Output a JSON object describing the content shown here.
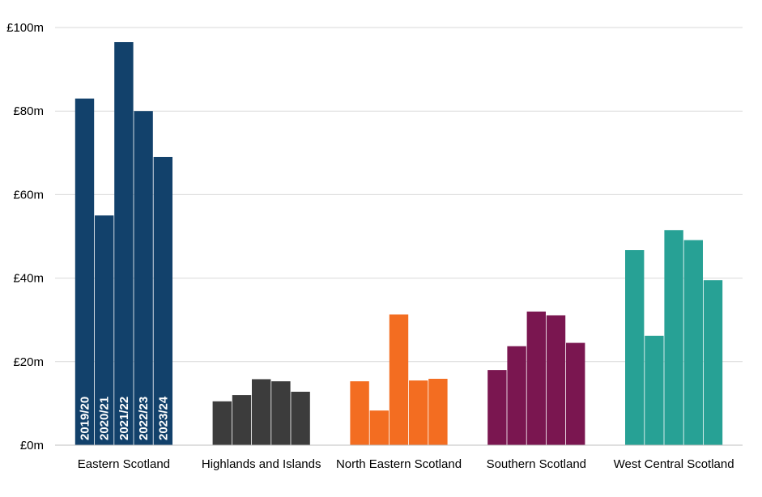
{
  "chart_data": {
    "type": "bar",
    "title": "",
    "xlabel": "",
    "ylabel": "",
    "ylim": [
      0,
      100
    ],
    "y_ticks": [
      "£0m",
      "£20m",
      "£40m",
      "£60m",
      "£80m",
      "£100m"
    ],
    "grid": true,
    "categories": [
      "Eastern Scotland",
      "Highlands and Islands",
      "North Eastern Scotland",
      "Southern Scotland",
      "West Central Scotland"
    ],
    "bar_labels": [
      "2019/20",
      "2020/21",
      "2021/22",
      "2022/23",
      "2023/24"
    ],
    "groups": [
      {
        "category": "Eastern Scotland",
        "color": "#12416b",
        "values": [
          83,
          55,
          96.5,
          80,
          69
        ]
      },
      {
        "category": "Highlands and Islands",
        "color": "#3c3c3c",
        "values": [
          10.5,
          12,
          15.8,
          15.3,
          12.8
        ]
      },
      {
        "category": "North Eastern Scotland",
        "color": "#f36d21",
        "values": [
          15.3,
          8.3,
          31.3,
          15.5,
          15.9
        ]
      },
      {
        "category": "Southern Scotland",
        "color": "#7a1650",
        "values": [
          18,
          23.7,
          32,
          31.1,
          24.5
        ]
      },
      {
        "category": "West Central Scotland",
        "color": "#27a195",
        "values": [
          46.7,
          26.2,
          51.5,
          49.1,
          39.5
        ]
      }
    ]
  }
}
